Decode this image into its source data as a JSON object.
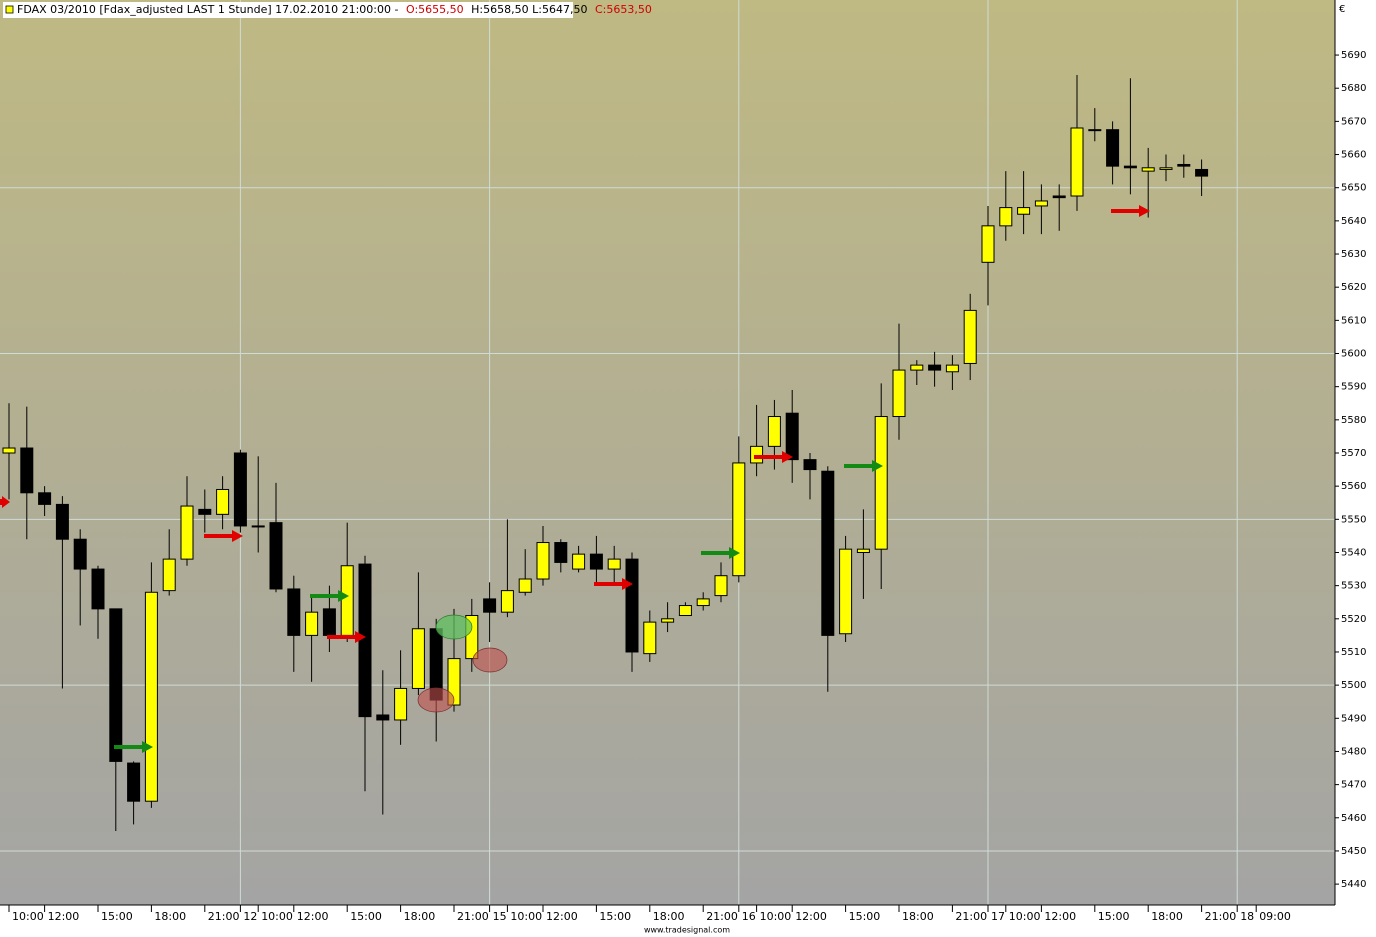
{
  "chart_data": {
    "type": "candlestick",
    "title": "FDAX 03/2010 [Fdax_adjusted LAST 1 Stunde] 17.02.2010 21:00:00 -",
    "ohlc_text": [
      "O:5655,50",
      "H:5658,50 L:5647,50",
      "C:5653,50"
    ],
    "currency": "€",
    "footer": "www.tradesignal.com",
    "categories": [
      "10:00",
      null,
      "12:00",
      null,
      null,
      "15:00",
      null,
      null,
      "18:00",
      null,
      null,
      "21:00",
      null,
      null,
      "10:00",
      null,
      "12:00",
      null,
      null,
      "15:00",
      null,
      null,
      "18:00",
      null,
      null,
      "21:00",
      null,
      null,
      "10:00",
      null,
      "12:00",
      null,
      null,
      "15:00",
      null,
      null,
      "18:00",
      null,
      null,
      "21:00",
      null,
      null,
      "10:00",
      null,
      "12:00",
      null,
      null,
      "15:00",
      null,
      null,
      "18:00",
      null,
      null,
      "21:00",
      null,
      null,
      "10:00",
      null,
      "12:00",
      null,
      null,
      "15:00",
      null,
      null,
      "18:00",
      null,
      null,
      "21:00",
      null,
      "09:00"
    ],
    "days": [
      null,
      null,
      null,
      null,
      null,
      null,
      null,
      null,
      null,
      null,
      null,
      null,
      null,
      "12",
      null,
      null,
      null,
      null,
      null,
      null,
      null,
      null,
      null,
      null,
      null,
      null,
      null,
      "15",
      null,
      null,
      null,
      null,
      null,
      null,
      null,
      null,
      null,
      null,
      null,
      null,
      null,
      "16",
      null,
      null,
      null,
      null,
      null,
      null,
      null,
      null,
      null,
      null,
      null,
      null,
      null,
      "17",
      null,
      null,
      null,
      null,
      null,
      null,
      null,
      null,
      null,
      null,
      null,
      null,
      null,
      "18"
    ],
    "open": [
      5570,
      5571.5,
      5558,
      5554.5,
      5544,
      5535,
      5523,
      5476.5,
      5465,
      5528.5,
      5538,
      5553,
      5551.5,
      5570,
      5548,
      5549,
      5529,
      5515,
      5523,
      5515,
      5536.5,
      5491,
      5489.5,
      5499,
      5517,
      5494,
      5508,
      5526,
      5522,
      5528,
      5532,
      5543,
      5535,
      5539.5,
      5535,
      5538,
      5509.5,
      5519,
      5521,
      5524,
      5527,
      5533,
      5567,
      5572,
      5582,
      5568,
      5564.5,
      5515.5,
      5540,
      5541,
      5581,
      5595,
      5596.5,
      5594.5,
      5597,
      5627.5,
      5638.5,
      5642,
      5644.5,
      5647.5,
      5647.5,
      5667.5,
      5667.5,
      5656.5,
      5655,
      5655.5,
      5657,
      5655.5,
      null,
      null
    ],
    "high": [
      5585,
      5584,
      5560,
      5557,
      5547,
      5536,
      5523,
      5477,
      5537,
      5547,
      5563,
      5559,
      5563,
      5571,
      5569,
      5561,
      5533,
      5527,
      5530,
      5549,
      5539,
      5504.5,
      5510.5,
      5534,
      5520,
      5523,
      5526,
      5531,
      5550,
      5541,
      5548,
      5544,
      5542,
      5545,
      5542,
      5540,
      5522.5,
      5525,
      5525,
      5528,
      5537,
      5575,
      5584.5,
      5586,
      5589,
      5570,
      5566,
      5545,
      5553,
      5591,
      5609,
      5598,
      5600.5,
      5599.5,
      5618,
      5644.5,
      5655,
      5655,
      5651,
      5651,
      5684,
      5674,
      5670,
      5683,
      5662,
      5660,
      5660,
      5658.5,
      null,
      null
    ],
    "low": [
      5556,
      5544,
      5551,
      5499,
      5518,
      5514,
      5456,
      5458,
      5463,
      5527,
      5536,
      5546,
      5547,
      5546,
      5540,
      5528,
      5504,
      5501,
      5510,
      5513,
      5468,
      5461,
      5482,
      5497,
      5483,
      5492,
      5504,
      5513,
      5520.5,
      5527,
      5530,
      5534,
      5534,
      5531,
      5531,
      5504,
      5507,
      5516,
      5521,
      5522.5,
      5525,
      5531,
      5563,
      5565,
      5561,
      5556,
      5498,
      5513,
      5526,
      5529,
      5574,
      5590.5,
      5590,
      5589,
      5592,
      5614.5,
      5634,
      5636,
      5636,
      5637,
      5643,
      5664,
      5651,
      5648,
      5641,
      5652,
      5653,
      5647.5,
      null,
      null
    ],
    "close": [
      5571.5,
      5558,
      5554.5,
      5544,
      5535,
      5523,
      5477,
      5465,
      5528,
      5538,
      5554,
      5551.5,
      5559,
      5548,
      5548,
      5529,
      5515,
      5522,
      5515,
      5536,
      5490.5,
      5489.5,
      5499,
      5517,
      5495.5,
      5508,
      5521,
      5522,
      5528.5,
      5532,
      5543,
      5537,
      5539.5,
      5535,
      5538,
      5510,
      5519,
      5520,
      5524,
      5526,
      5533,
      5567,
      5572,
      5581,
      5568,
      5565,
      5515,
      5541,
      5541,
      5581,
      5595,
      5596.5,
      5595,
      5596.5,
      5613,
      5638.5,
      5644,
      5644,
      5646,
      5647,
      5668,
      5667.5,
      5656.5,
      5656,
      5656,
      5656,
      5656.5,
      5653.5,
      null,
      null
    ],
    "up_color": "#ffff00",
    "down_color": "#000000",
    "ylim": [
      5433.7,
      5706.6
    ],
    "yticks": [
      5440,
      5450,
      5460,
      5470,
      5480,
      5490,
      5500,
      5510,
      5520,
      5530,
      5540,
      5550,
      5560,
      5570,
      5580,
      5590,
      5600,
      5610,
      5620,
      5630,
      5640,
      5650,
      5660,
      5670,
      5680,
      5690
    ],
    "grid_values": [
      5450,
      5500,
      5550,
      5600,
      5650
    ],
    "grid": true
  }
}
